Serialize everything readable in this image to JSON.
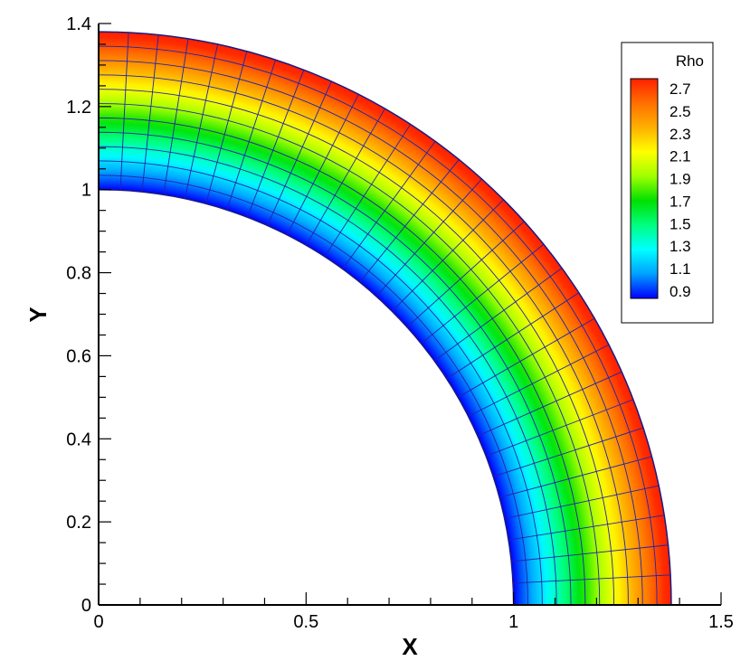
{
  "chart_data": {
    "type": "heatmap",
    "title": "",
    "xlabel": "X",
    "ylabel": "Y",
    "xlim": [
      0,
      1.5
    ],
    "ylim": [
      0,
      1.4
    ],
    "x_ticks": [
      0,
      0.5,
      1,
      1.5
    ],
    "x_tick_labels": [
      "0",
      "0.5",
      "1",
      "1.5"
    ],
    "y_ticks": [
      0,
      0.2,
      0.4,
      0.6,
      0.8,
      1,
      1.2,
      1.4
    ],
    "y_tick_labels": [
      "0",
      "0.2",
      "0.4",
      "0.6",
      "0.8",
      "1",
      "1.2",
      "1.4"
    ],
    "domain": {
      "shape": "quarter-annulus",
      "inner_radius": 1.0,
      "outer_radius": 1.38,
      "theta_range_deg": [
        0,
        90
      ]
    },
    "mesh": {
      "radial_cells": 11,
      "angular_cells": 30,
      "line_color": "#2222aa"
    },
    "field": {
      "variable": "Rho",
      "profile": "increases with radius",
      "inner_value": 0.9,
      "outer_value": 2.85
    },
    "colorbar": {
      "title": "Rho",
      "levels": [
        "2.7",
        "2.5",
        "2.3",
        "2.1",
        "1.9",
        "1.7",
        "1.5",
        "1.3",
        "1.1",
        "0.9"
      ],
      "min": 0.9,
      "max": 2.8,
      "colors": [
        "#0000ff",
        "#00a0ff",
        "#00ffff",
        "#00ff80",
        "#00e000",
        "#a0ff00",
        "#ffff00",
        "#ffb000",
        "#ff7000",
        "#ff2000"
      ],
      "placement": "top-right"
    }
  }
}
